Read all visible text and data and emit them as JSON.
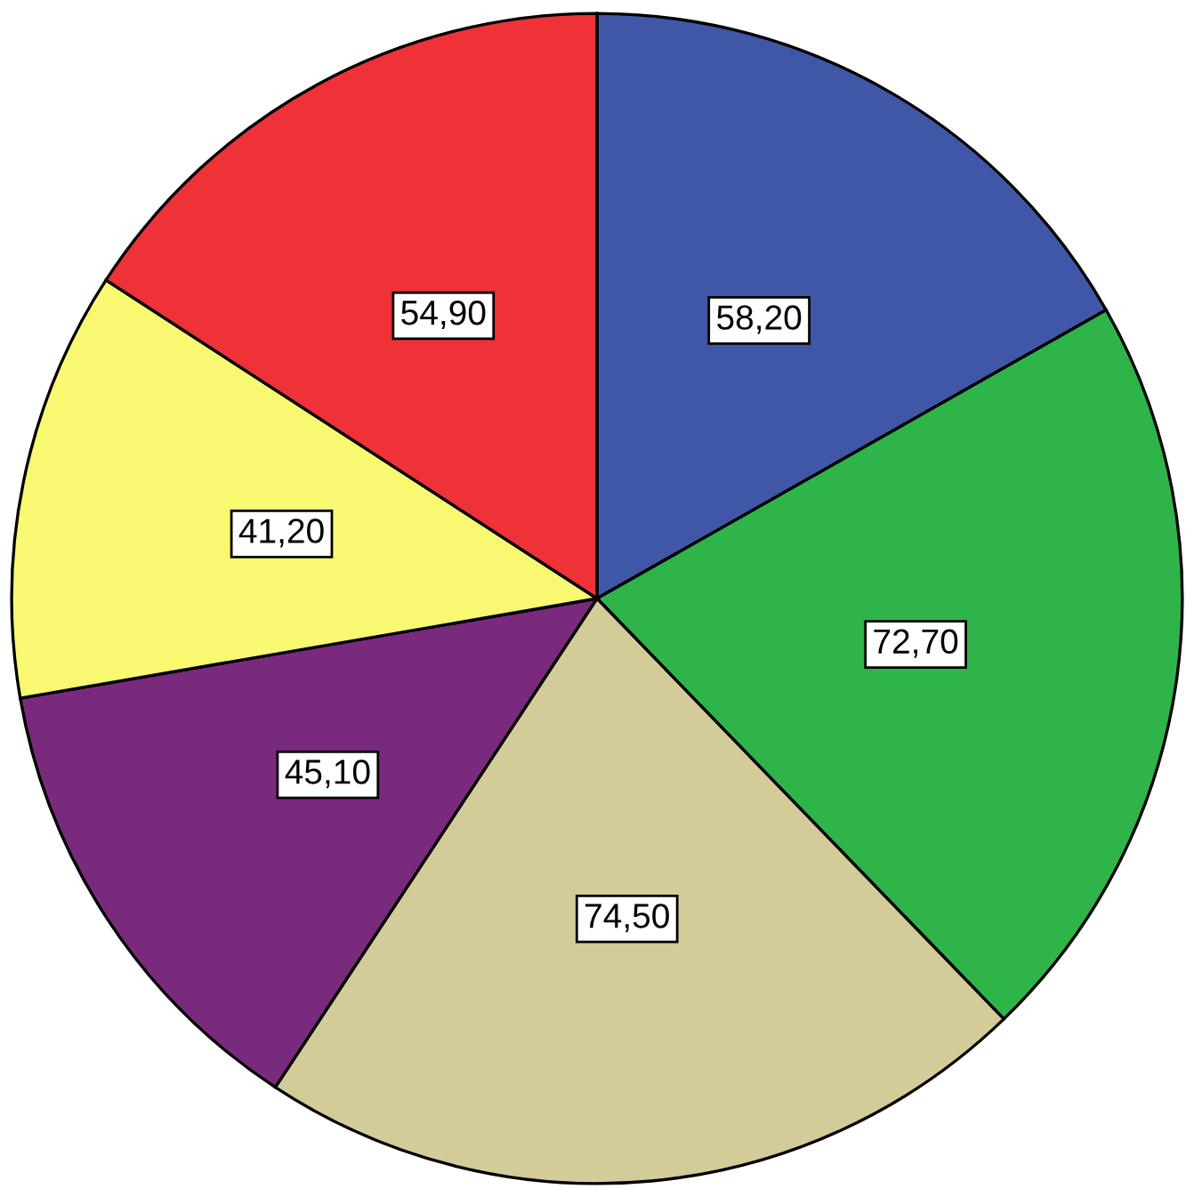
{
  "chart_data": {
    "type": "pie",
    "categories": [
      null,
      null,
      null,
      null,
      null,
      null
    ],
    "values": [
      58.2,
      72.7,
      74.5,
      45.1,
      41.2,
      54.9
    ],
    "colors": [
      "#3f57a6",
      "#2fb44a",
      "#d4cc98",
      "#7a2a7c",
      "#f9f871",
      "#ee3237"
    ],
    "value_labels": [
      "58,20",
      "72,70",
      "74,50",
      "45,10",
      "41,20",
      "54,90"
    ]
  }
}
